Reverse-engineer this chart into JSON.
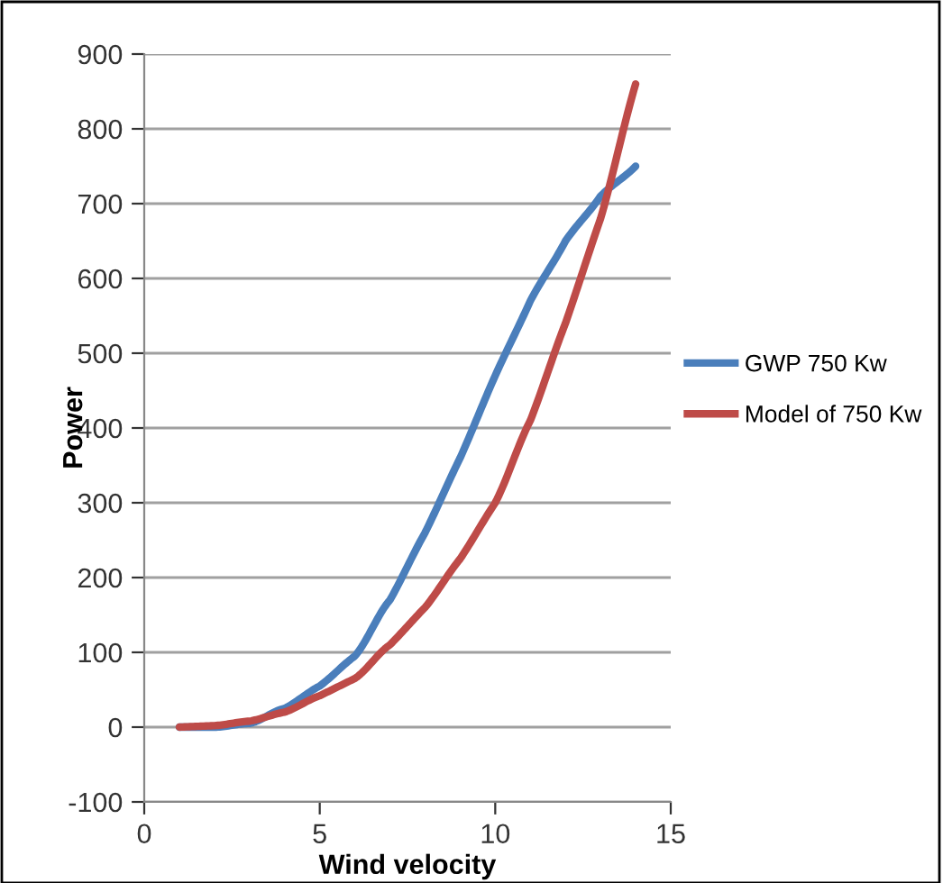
{
  "chart_data": {
    "type": "line",
    "xlabel": "Wind velocity",
    "ylabel": "Power",
    "x": [
      1,
      2,
      3,
      4,
      5,
      6,
      7,
      8,
      9,
      10,
      11,
      12,
      13,
      14
    ],
    "series": [
      {
        "name": "GWP 750 Kw",
        "color": "#4a7ebb",
        "values": [
          0,
          0,
          5,
          25,
          55,
          95,
          170,
          260,
          360,
          470,
          570,
          650,
          710,
          750
        ]
      },
      {
        "name": "Model of 750 Kw",
        "color": "#be4b48",
        "values": [
          0,
          2,
          8,
          20,
          42,
          65,
          110,
          160,
          225,
          300,
          410,
          540,
          680,
          860
        ]
      }
    ],
    "xlim": [
      0,
      15
    ],
    "xticks": [
      0,
      5,
      10,
      15
    ],
    "ylim": [
      -100,
      900
    ],
    "yticks": [
      -100,
      0,
      100,
      200,
      300,
      400,
      500,
      600,
      700,
      800,
      900
    ],
    "grid": "y",
    "legend": "right",
    "marker": "none",
    "line_style": "solid"
  }
}
